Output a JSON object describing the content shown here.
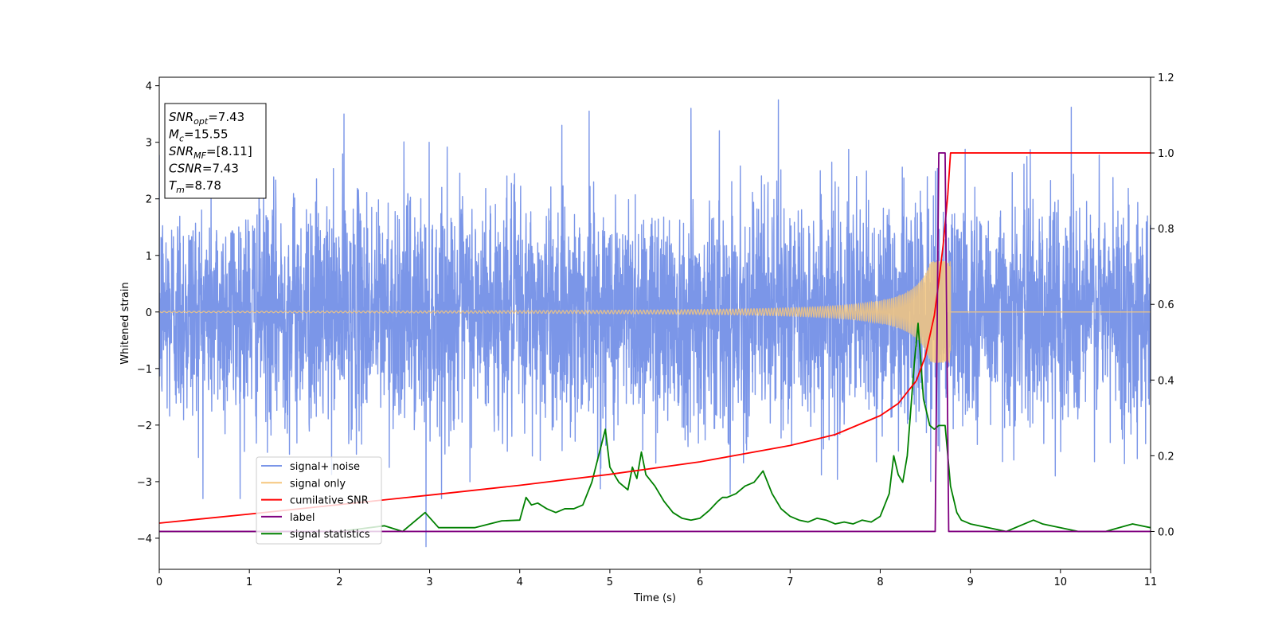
{
  "chart_data": {
    "type": "line",
    "xlabel": "Time (s)",
    "ylabel_left": "Whitened strain",
    "ylabel_right": "",
    "xlim": [
      0,
      11
    ],
    "ylim_left": [
      -4.55,
      4.15
    ],
    "ylim_right": [
      -0.1,
      1.2
    ],
    "x_ticks": [
      "0",
      "1",
      "2",
      "3",
      "4",
      "5",
      "6",
      "7",
      "8",
      "9",
      "10",
      "11"
    ],
    "y_ticks_left": [
      "−4",
      "−3",
      "−2",
      "−1",
      "0",
      "1",
      "2",
      "3",
      "4"
    ],
    "y_ticks_right": [
      "0.0",
      "0.2",
      "0.4",
      "0.6",
      "0.8",
      "1.0",
      "1.2"
    ],
    "grid": false,
    "legend": {
      "placement": "lower-left",
      "entries": [
        {
          "label": "signal+ noise",
          "color": "#7b96e8"
        },
        {
          "label": "signal only",
          "color": "#f5c77e"
        },
        {
          "label": "cumilative SNR",
          "color": "#ff0000"
        },
        {
          "label": "label",
          "color": "#800080"
        },
        {
          "label": "signal statistics",
          "color": "#008000"
        }
      ]
    },
    "info_box": {
      "placement": "top-left",
      "lines": [
        {
          "main": "SNR",
          "sub": "opt",
          "rest": "=7.43"
        },
        {
          "main": "M",
          "sub": "c",
          "rest": "=15.55"
        },
        {
          "main": "SNR",
          "sub": "MF",
          "rest": "=[8.11]"
        },
        {
          "main": "CSNR",
          "sub": "",
          "rest": "=7.43"
        },
        {
          "main": "T",
          "sub": "m",
          "rest": "=8.78"
        }
      ]
    },
    "series": [
      {
        "name": "signal+ noise",
        "axis": "left",
        "color": "#7b96e8",
        "style": "dense noise",
        "range_typical": [
          -2.3,
          2.3
        ],
        "peaks_x": [
          2.05,
          4.77,
          5.9,
          6.87,
          10.12
        ],
        "peaks_y": [
          3.5,
          3.55,
          3.6,
          3.75,
          3.62
        ],
        "min_point": [
          2.96,
          -4.15
        ]
      },
      {
        "name": "signal only",
        "axis": "left",
        "color": "#f5c77e",
        "style": "chirp",
        "merger_time": 8.78,
        "peak_amplitude": 0.9
      },
      {
        "name": "cumilative SNR",
        "axis": "right",
        "color": "#ff0000",
        "x": [
          0,
          1,
          2,
          3,
          4,
          5,
          6,
          7,
          7.5,
          8,
          8.2,
          8.4,
          8.5,
          8.6,
          8.65,
          8.7,
          8.75,
          8.78,
          11
        ],
        "y": [
          0.022,
          0.046,
          0.071,
          0.096,
          0.122,
          0.151,
          0.184,
          0.227,
          0.256,
          0.306,
          0.338,
          0.398,
          0.462,
          0.57,
          0.66,
          0.76,
          0.89,
          1.0,
          1.0
        ]
      },
      {
        "name": "label",
        "axis": "right",
        "color": "#800080",
        "x": [
          0,
          8.61,
          8.65,
          8.72,
          8.76,
          11
        ],
        "y": [
          0,
          0,
          1.0,
          1.0,
          0,
          0
        ]
      },
      {
        "name": "signal statistics",
        "axis": "right",
        "color": "#008000",
        "x": [
          0,
          0.5,
          1.0,
          1.5,
          2.0,
          2.5,
          2.7,
          2.95,
          3.1,
          3.5,
          3.8,
          4.0,
          4.07,
          4.13,
          4.2,
          4.3,
          4.4,
          4.5,
          4.6,
          4.7,
          4.8,
          4.95,
          5.0,
          5.1,
          5.2,
          5.25,
          5.3,
          5.35,
          5.4,
          5.5,
          5.6,
          5.7,
          5.8,
          5.9,
          6.0,
          6.1,
          6.2,
          6.25,
          6.3,
          6.4,
          6.5,
          6.6,
          6.7,
          6.75,
          6.8,
          6.9,
          7.0,
          7.1,
          7.2,
          7.3,
          7.4,
          7.5,
          7.6,
          7.7,
          7.8,
          7.9,
          8.0,
          8.1,
          8.15,
          8.2,
          8.25,
          8.3,
          8.38,
          8.42,
          8.48,
          8.55,
          8.6,
          8.65,
          8.72,
          8.78,
          8.85,
          8.9,
          9.0,
          9.2,
          9.4,
          9.6,
          9.7,
          9.8,
          10.0,
          10.2,
          10.5,
          10.8,
          11.0
        ],
        "y": [
          0,
          0.0,
          0.0,
          0.0,
          0.0,
          0.015,
          0.0,
          0.05,
          0.01,
          0.01,
          0.028,
          0.03,
          0.09,
          0.07,
          0.075,
          0.06,
          0.05,
          0.06,
          0.06,
          0.07,
          0.13,
          0.27,
          0.17,
          0.13,
          0.11,
          0.17,
          0.14,
          0.21,
          0.15,
          0.12,
          0.08,
          0.05,
          0.035,
          0.03,
          0.035,
          0.055,
          0.08,
          0.09,
          0.09,
          0.1,
          0.12,
          0.13,
          0.16,
          0.13,
          0.1,
          0.06,
          0.04,
          0.03,
          0.025,
          0.035,
          0.03,
          0.02,
          0.025,
          0.02,
          0.03,
          0.025,
          0.04,
          0.1,
          0.2,
          0.15,
          0.13,
          0.2,
          0.45,
          0.55,
          0.35,
          0.28,
          0.27,
          0.28,
          0.28,
          0.12,
          0.05,
          0.03,
          0.02,
          0.01,
          0.0,
          0.02,
          0.03,
          0.02,
          0.01,
          0.0,
          0.0,
          0.02,
          0.01
        ]
      }
    ]
  }
}
